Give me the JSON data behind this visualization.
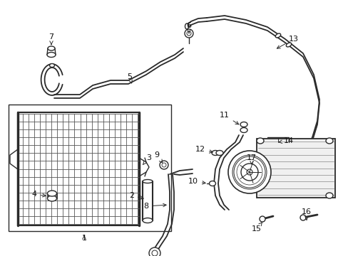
{
  "bg_color": "#ffffff",
  "line_color": "#2a2a2a",
  "lw": 1.0,
  "fs": 8.0,
  "fig_w": 4.89,
  "fig_h": 3.6,
  "dpi": 100
}
